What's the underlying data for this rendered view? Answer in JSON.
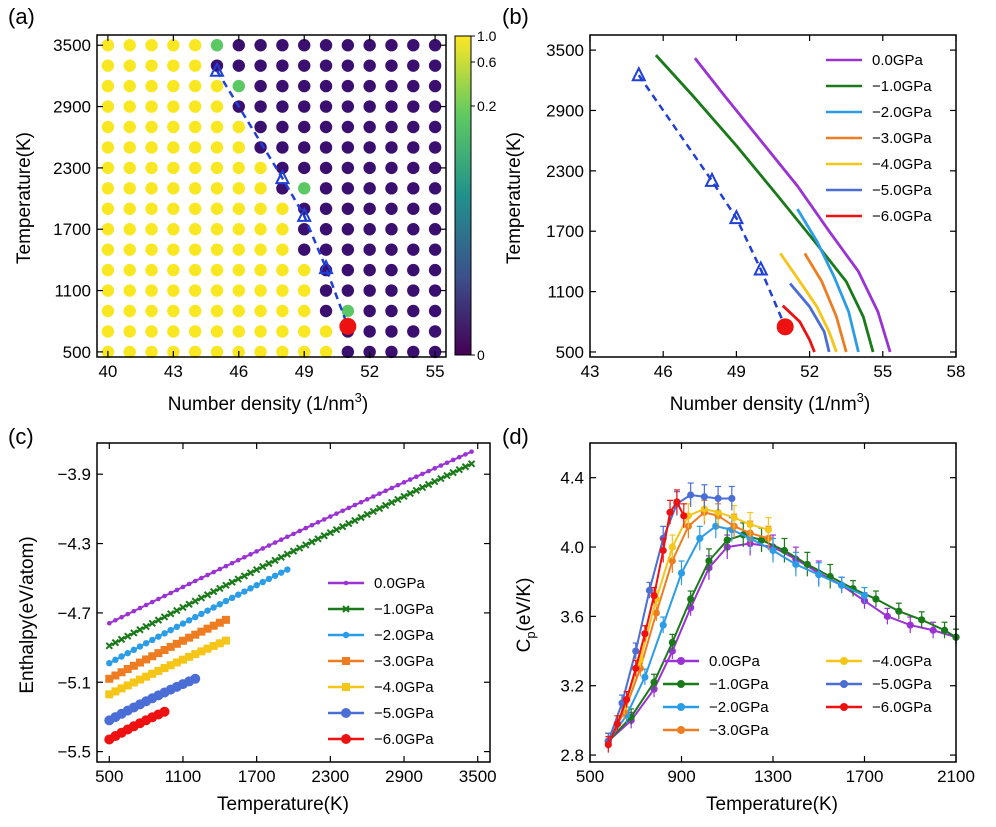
{
  "panels": {
    "a": {
      "label": "(a)",
      "xlabel": "Number density (1/nm",
      "xlabel_sup": "3",
      "xlabel_end": ")",
      "ylabel": "Temperature(K)"
    },
    "b": {
      "label": "(b)",
      "xlabel": "Number density (1/nm",
      "xlabel_sup": "3",
      "xlabel_end": ")",
      "ylabel": "Temperature(K)"
    },
    "c": {
      "label": "(c)",
      "xlabel": "Temperature(K)",
      "ylabel": "Enthalpy(eV/atom)"
    },
    "d": {
      "label": "(d)",
      "xlabel": "Temperature(K)",
      "ylabel": "C",
      "ylabel_sub": "p",
      "ylabel_end": "(eV/K)"
    }
  },
  "chart_data": [
    {
      "id": "a",
      "type": "scatter",
      "title": "",
      "xlim": [
        39.5,
        55.5
      ],
      "ylim": [
        450,
        3600
      ],
      "xticks": [
        "40",
        "43",
        "46",
        "49",
        "52",
        "55"
      ],
      "xtick_values": [
        40,
        43,
        46,
        49,
        52,
        55
      ],
      "yticks": [
        "500",
        "1100",
        "1700",
        "2300",
        "2900",
        "3500"
      ],
      "ytick_values": [
        500,
        1100,
        1700,
        2300,
        2900,
        3500
      ],
      "grid_x": [
        40,
        41,
        42,
        43,
        44,
        45,
        46,
        47,
        48,
        49,
        50,
        51,
        52,
        53,
        54,
        55
      ],
      "grid_y": [
        500,
        700,
        900,
        1100,
        1300,
        1500,
        1700,
        1900,
        2100,
        2300,
        2500,
        2700,
        2900,
        3100,
        3300,
        3500
      ],
      "boundary": [
        {
          "T": 500,
          "n": 51
        },
        {
          "T": 700,
          "n": 51
        },
        {
          "T": 900,
          "n": 50
        },
        {
          "T": 1100,
          "n": 50
        },
        {
          "T": 1300,
          "n": 50
        },
        {
          "T": 1500,
          "n": 49
        },
        {
          "T": 1700,
          "n": 49
        },
        {
          "T": 1900,
          "n": 49
        },
        {
          "T": 2100,
          "n": 48
        },
        {
          "T": 2300,
          "n": 48
        },
        {
          "T": 2500,
          "n": 47
        },
        {
          "T": 2700,
          "n": 47
        },
        {
          "T": 2900,
          "n": 46
        },
        {
          "T": 3100,
          "n": 46
        },
        {
          "T": 3300,
          "n": 45
        },
        {
          "T": 3500,
          "n": 45
        }
      ],
      "intermediate_points": [
        {
          "x": 45,
          "y": 3500,
          "value": 0.4
        },
        {
          "x": 46,
          "y": 3100,
          "value": 0.4
        },
        {
          "x": 49,
          "y": 2100,
          "value": 0.4
        },
        {
          "x": 51,
          "y": 900,
          "value": 0.4
        }
      ],
      "spinodal_line": {
        "x": [
          45,
          48,
          49,
          50,
          51
        ],
        "y": [
          3250,
          2200,
          1830,
          1320,
          750
        ],
        "color": "#1f3fd6"
      },
      "critical_point": {
        "x": 51,
        "y": 750,
        "color": "#ee1111"
      },
      "colorbar": {
        "ticks": [
          "1.0",
          "0.6",
          "0.2",
          "0"
        ],
        "tick_values": [
          1.0,
          0.6,
          0.2,
          0.0
        ],
        "low_color": "#3b0f70",
        "high_color": "#f9e721"
      }
    },
    {
      "id": "b",
      "type": "line",
      "xlim": [
        43,
        58
      ],
      "ylim": [
        450,
        3650
      ],
      "xticks": [
        "43",
        "46",
        "49",
        "52",
        "55",
        "58"
      ],
      "xtick_values": [
        43,
        46,
        49,
        52,
        55,
        58
      ],
      "yticks": [
        "500",
        "1100",
        "1700",
        "2300",
        "2900",
        "3500"
      ],
      "ytick_values": [
        500,
        1100,
        1700,
        2300,
        2900,
        3500
      ],
      "series": [
        {
          "name": "0.0GPa",
          "color": "#9a32d4",
          "x": [
            47.3,
            48.5,
            50.0,
            51.5,
            52.8,
            54.0,
            54.8,
            55.3
          ],
          "y": [
            3420,
            3050,
            2600,
            2150,
            1700,
            1300,
            900,
            500
          ]
        },
        {
          "name": "-1.0GPa",
          "color": "#1a7a1a",
          "x": [
            45.7,
            47.2,
            49.0,
            50.7,
            52.2,
            53.5,
            54.2,
            54.6
          ],
          "y": [
            3450,
            3050,
            2550,
            2050,
            1600,
            1200,
            850,
            500
          ]
        },
        {
          "name": "-2.0GPa",
          "color": "#2b9ce6",
          "x": [
            51.5,
            52.3,
            53.0,
            53.6,
            54.0
          ],
          "y": [
            1920,
            1600,
            1250,
            900,
            500
          ]
        },
        {
          "name": "-3.0GPa",
          "color": "#ee7d22",
          "x": [
            51.8,
            52.5,
            53.1,
            53.5
          ],
          "y": [
            1480,
            1200,
            850,
            500
          ]
        },
        {
          "name": "-4.0GPa",
          "color": "#f5c518",
          "x": [
            50.8,
            51.6,
            52.3,
            52.8,
            53.1
          ],
          "y": [
            1480,
            1200,
            950,
            700,
            500
          ]
        },
        {
          "name": "-5.0GPa",
          "color": "#4b6ed6",
          "x": [
            51.2,
            52.0,
            52.6,
            52.8
          ],
          "y": [
            1180,
            950,
            700,
            500
          ]
        },
        {
          "name": "-6.0GPa",
          "color": "#ee1111",
          "x": [
            50.9,
            51.6,
            52.0,
            52.2
          ],
          "y": [
            960,
            800,
            620,
            500
          ]
        }
      ],
      "spinodal_line": {
        "x": [
          45,
          48,
          49,
          50,
          51
        ],
        "y": [
          3250,
          2200,
          1830,
          1320,
          750
        ],
        "color": "#1f3fd6"
      },
      "critical_point": {
        "x": 51,
        "y": 750,
        "color": "#ee1111"
      },
      "legend": "top-right"
    },
    {
      "id": "c",
      "type": "line",
      "xlim": [
        400,
        3600
      ],
      "ylim": [
        -5.56,
        -3.72
      ],
      "xticks": [
        "500",
        "1100",
        "1700",
        "2300",
        "2900",
        "3500"
      ],
      "xtick_values": [
        500,
        1100,
        1700,
        2300,
        2900,
        3500
      ],
      "yticks": [
        "-3.9",
        "-4.3",
        "-4.7",
        "-5.1",
        "-5.5"
      ],
      "ytick_values": [
        -3.9,
        -4.3,
        -4.7,
        -5.1,
        -5.5
      ],
      "series": [
        {
          "name": "0.0GPa",
          "color": "#9a32d4",
          "marker": "dot",
          "x0": 500,
          "x1": 3450,
          "y0": -4.76,
          "y1": -3.77,
          "curv": -0.05
        },
        {
          "name": "-1.0GPa",
          "color": "#1a7a1a",
          "marker": "x",
          "x0": 500,
          "x1": 3450,
          "y0": -4.89,
          "y1": -3.84,
          "curv": -0.05
        },
        {
          "name": "-2.0GPa",
          "color": "#2b9ce6",
          "marker": "circle",
          "x0": 500,
          "x1": 1950,
          "y0": -4.99,
          "y1": -4.45,
          "curv": -0.02
        },
        {
          "name": "-3.0GPa",
          "color": "#ee7d22",
          "marker": "square",
          "x0": 500,
          "x1": 1450,
          "y0": -5.08,
          "y1": -4.74,
          "curv": -0.02
        },
        {
          "name": "-4.0GPa",
          "color": "#f5c518",
          "marker": "square",
          "x0": 500,
          "x1": 1450,
          "y0": -5.17,
          "y1": -4.86,
          "curv": -0.02
        },
        {
          "name": "-5.0GPa",
          "color": "#4b6ed6",
          "marker": "bigcircle",
          "x0": 500,
          "x1": 1200,
          "y0": -5.32,
          "y1": -5.08,
          "curv": -0.03
        },
        {
          "name": "-6.0GPa",
          "color": "#ee1111",
          "marker": "bigcircle",
          "x0": 500,
          "x1": 950,
          "y0": -5.43,
          "y1": -5.27,
          "curv": -0.02
        }
      ],
      "legend": "center-right"
    },
    {
      "id": "d",
      "type": "line",
      "xlim": [
        500,
        2100
      ],
      "ylim": [
        2.76,
        4.6
      ],
      "xticks": [
        "500",
        "900",
        "1300",
        "1700",
        "2100"
      ],
      "xtick_values": [
        500,
        900,
        1300,
        1700,
        2100
      ],
      "yticks": [
        "2.8",
        "3.2",
        "3.6",
        "4.0",
        "4.4"
      ],
      "ytick_values": [
        2.8,
        3.2,
        3.6,
        4.0,
        4.4
      ],
      "series": [
        {
          "name": "0.0GPa",
          "color": "#9a32d4",
          "x": [
            580,
            680,
            780,
            860,
            940,
            1020,
            1100,
            1200,
            1300,
            1400,
            1500,
            1600,
            1700,
            1800,
            1900,
            2000,
            2100
          ],
          "y": [
            2.88,
            3.0,
            3.18,
            3.4,
            3.65,
            3.88,
            4.0,
            4.02,
            4.0,
            3.93,
            3.85,
            3.78,
            3.69,
            3.6,
            3.55,
            3.52,
            3.48
          ]
        },
        {
          "name": "-1.0GPa",
          "color": "#1a7a1a",
          "x": [
            580,
            680,
            780,
            860,
            940,
            1020,
            1100,
            1170,
            1250,
            1350,
            1450,
            1550,
            1650,
            1750,
            1850,
            1950,
            2050,
            2100
          ],
          "y": [
            2.88,
            3.02,
            3.22,
            3.45,
            3.7,
            3.92,
            4.04,
            4.07,
            4.04,
            3.98,
            3.9,
            3.83,
            3.76,
            3.7,
            3.63,
            3.58,
            3.52,
            3.48
          ]
        },
        {
          "name": "-2.0GPa",
          "color": "#2b9ce6",
          "x": [
            580,
            660,
            740,
            820,
            900,
            980,
            1050,
            1120,
            1200,
            1300,
            1400,
            1500,
            1600,
            1700
          ],
          "y": [
            2.88,
            3.03,
            3.25,
            3.55,
            3.85,
            4.05,
            4.12,
            4.1,
            4.05,
            3.98,
            3.9,
            3.84,
            3.78,
            3.72
          ]
        },
        {
          "name": "-3.0GPa",
          "color": "#ee7d22",
          "x": [
            580,
            650,
            720,
            790,
            860,
            930,
            1000,
            1060,
            1130,
            1200,
            1280
          ],
          "y": [
            2.88,
            3.05,
            3.3,
            3.62,
            3.92,
            4.12,
            4.2,
            4.18,
            4.12,
            4.08,
            4.05
          ]
        },
        {
          "name": "-4.0GPa",
          "color": "#f5c518",
          "x": [
            580,
            650,
            720,
            790,
            860,
            930,
            1000,
            1060,
            1130,
            1200,
            1280
          ],
          "y": [
            2.88,
            3.08,
            3.35,
            3.7,
            4.0,
            4.18,
            4.22,
            4.2,
            4.17,
            4.13,
            4.1
          ]
        },
        {
          "name": "-5.0GPa",
          "color": "#4b6ed6",
          "x": [
            580,
            640,
            700,
            760,
            820,
            880,
            940,
            1000,
            1060,
            1120
          ],
          "y": [
            2.88,
            3.1,
            3.4,
            3.75,
            4.05,
            4.25,
            4.3,
            4.29,
            4.28,
            4.28
          ]
        },
        {
          "name": "-6.0GPa",
          "color": "#ee1111",
          "x": [
            580,
            620,
            660,
            700,
            740,
            780,
            820,
            850,
            880,
            910
          ],
          "y": [
            2.86,
            2.98,
            3.12,
            3.3,
            3.5,
            3.72,
            3.98,
            4.2,
            4.26,
            4.18
          ]
        }
      ],
      "legend": "bottom-center"
    }
  ]
}
